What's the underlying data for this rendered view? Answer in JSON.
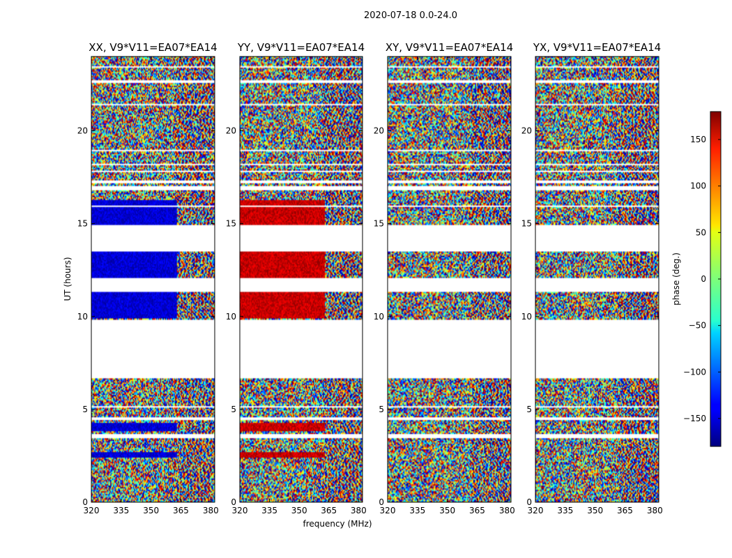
{
  "chart_data": {
    "type": "heatmap",
    "title": "2020-07-18 0.0-24.0",
    "xlabel": "frequency (MHz)",
    "ylabel": "UT (hours)",
    "xlim": [
      320,
      382
    ],
    "ylim": [
      0,
      24
    ],
    "xticks": [
      "320",
      "335",
      "350",
      "365",
      "380"
    ],
    "xtick_values": [
      320,
      335,
      350,
      365,
      380
    ],
    "yticks": [
      "0",
      "5",
      "10",
      "15",
      "20"
    ],
    "ytick_values": [
      0,
      5,
      10,
      15,
      20
    ],
    "colormap": "jet",
    "panels": [
      {
        "title": "XX, V9*V11=EA07*EA14",
        "coherent_phase_deg": -150
      },
      {
        "title": "YY, V9*V11=EA07*EA14",
        "coherent_phase_deg": 155
      },
      {
        "title": "XY, V9*V11=EA07*EA14",
        "coherent_phase_deg": null
      },
      {
        "title": "YX, V9*V11=EA07*EA14",
        "coherent_phase_deg": null
      }
    ],
    "coherent_freq_max_mhz": 363,
    "coherent_ut_ranges": [
      [
        14.9,
        16.3
      ],
      [
        12.0,
        13.5
      ],
      [
        9.9,
        11.3
      ],
      [
        3.8,
        4.3
      ],
      [
        2.4,
        2.7
      ]
    ],
    "data_gaps_ut": [
      [
        6.65,
        9.85
      ],
      [
        13.5,
        14.95
      ],
      [
        11.3,
        12.05
      ],
      [
        15.9,
        16.0
      ],
      [
        16.8,
        17.0
      ],
      [
        17.2,
        17.35
      ],
      [
        17.75,
        17.85
      ],
      [
        18.15,
        18.25
      ],
      [
        18.9,
        19.0
      ],
      [
        3.45,
        3.7
      ],
      [
        4.45,
        4.55
      ],
      [
        5.1,
        5.2
      ],
      [
        22.6,
        22.7
      ],
      [
        21.35,
        21.45
      ],
      [
        23.4,
        23.5
      ]
    ],
    "colorbar": {
      "label": "phase (deg.)",
      "range": [
        -180,
        180
      ],
      "ticks": [
        "150",
        "100",
        "50",
        "0",
        "−50",
        "−100",
        "−150"
      ],
      "tick_values": [
        150,
        100,
        50,
        0,
        -50,
        -100,
        -150
      ]
    }
  }
}
